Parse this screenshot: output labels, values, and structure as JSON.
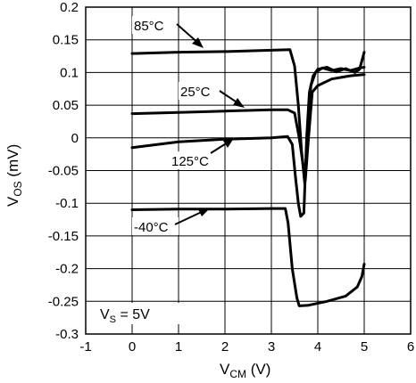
{
  "chart_data": {
    "type": "line",
    "xlabel": {
      "main": "V",
      "sub": "CM",
      "unit": " (V)"
    },
    "ylabel": {
      "main": "V",
      "sub": "OS",
      "unit": " (mV)"
    },
    "xlim": [
      -1,
      6
    ],
    "ylim": [
      -0.3,
      0.2
    ],
    "grid": true,
    "x_ticks": [
      {
        "v": -1,
        "label": "-1"
      },
      {
        "v": 0,
        "label": "0"
      },
      {
        "v": 1,
        "label": "1"
      },
      {
        "v": 2,
        "label": "2"
      },
      {
        "v": 3,
        "label": "3"
      },
      {
        "v": 4,
        "label": "4"
      },
      {
        "v": 5,
        "label": "5"
      },
      {
        "v": 6,
        "label": "6"
      }
    ],
    "y_ticks": [
      {
        "v": 0.2,
        "label": "0.2"
      },
      {
        "v": 0.15,
        "label": "0.15"
      },
      {
        "v": 0.1,
        "label": "0.1"
      },
      {
        "v": 0.05,
        "label": "0.05"
      },
      {
        "v": 0,
        "label": "0"
      },
      {
        "v": -0.05,
        "label": "-0.05"
      },
      {
        "v": -0.1,
        "label": "-0.1"
      },
      {
        "v": -0.15,
        "label": "-0.15"
      },
      {
        "v": -0.2,
        "label": "-0.2"
      },
      {
        "v": -0.25,
        "label": "-0.25"
      },
      {
        "v": -0.3,
        "label": "-0.3"
      }
    ],
    "series": [
      {
        "name": "85°C",
        "points": [
          [
            0,
            0.129
          ],
          [
            1,
            0.131
          ],
          [
            2,
            0.132
          ],
          [
            3,
            0.134
          ],
          [
            3.4,
            0.135
          ],
          [
            3.5,
            0.11
          ],
          [
            3.58,
            0.05
          ],
          [
            3.65,
            -0.02
          ],
          [
            3.72,
            -0.07
          ],
          [
            3.8,
            0.02
          ],
          [
            3.85,
            0.08
          ],
          [
            3.95,
            0.1
          ],
          [
            4.1,
            0.107
          ],
          [
            4.3,
            0.103
          ],
          [
            4.5,
            0.106
          ],
          [
            4.7,
            0.103
          ],
          [
            4.9,
            0.107
          ],
          [
            5.0,
            0.108
          ]
        ]
      },
      {
        "name": "25°C",
        "points": [
          [
            0,
            0.037
          ],
          [
            1,
            0.039
          ],
          [
            2,
            0.041
          ],
          [
            3,
            0.043
          ],
          [
            3.35,
            0.043
          ],
          [
            3.5,
            0.038
          ],
          [
            3.6,
            0.0
          ],
          [
            3.68,
            -0.04
          ],
          [
            3.73,
            -0.065
          ],
          [
            3.8,
            0.0
          ],
          [
            3.88,
            0.07
          ],
          [
            4.0,
            0.08
          ],
          [
            4.3,
            0.09
          ],
          [
            4.7,
            0.095
          ],
          [
            5.0,
            0.097
          ]
        ]
      },
      {
        "name": "125°C",
        "points": [
          [
            0,
            -0.015
          ],
          [
            1,
            -0.006
          ],
          [
            2,
            -0.002
          ],
          [
            3,
            0.0
          ],
          [
            3.35,
            0.002
          ],
          [
            3.45,
            -0.01
          ],
          [
            3.52,
            -0.06
          ],
          [
            3.58,
            -0.1
          ],
          [
            3.63,
            -0.12
          ],
          [
            3.7,
            -0.115
          ],
          [
            3.76,
            0.0
          ],
          [
            3.82,
            0.07
          ],
          [
            3.9,
            0.095
          ],
          [
            4.0,
            0.105
          ],
          [
            4.2,
            0.108
          ],
          [
            4.4,
            0.101
          ],
          [
            4.6,
            0.106
          ],
          [
            4.8,
            0.1
          ],
          [
            4.9,
            0.105
          ],
          [
            5.0,
            0.131
          ]
        ]
      },
      {
        "name": "-40°C",
        "points": [
          [
            0,
            -0.11
          ],
          [
            1,
            -0.109
          ],
          [
            2,
            -0.109
          ],
          [
            3,
            -0.108
          ],
          [
            3.3,
            -0.108
          ],
          [
            3.36,
            -0.13
          ],
          [
            3.45,
            -0.2
          ],
          [
            3.55,
            -0.245
          ],
          [
            3.6,
            -0.257
          ],
          [
            3.8,
            -0.256
          ],
          [
            4.2,
            -0.25
          ],
          [
            4.6,
            -0.242
          ],
          [
            4.85,
            -0.228
          ],
          [
            4.95,
            -0.212
          ],
          [
            5.0,
            -0.193
          ]
        ]
      }
    ],
    "annotations": [
      {
        "text": "85°C"
      },
      {
        "text": "25°C"
      },
      {
        "text": "125°C"
      },
      {
        "text": "-40°C"
      }
    ],
    "conditions": {
      "main": "V",
      "sub": "S",
      "rest": " = 5V"
    }
  }
}
